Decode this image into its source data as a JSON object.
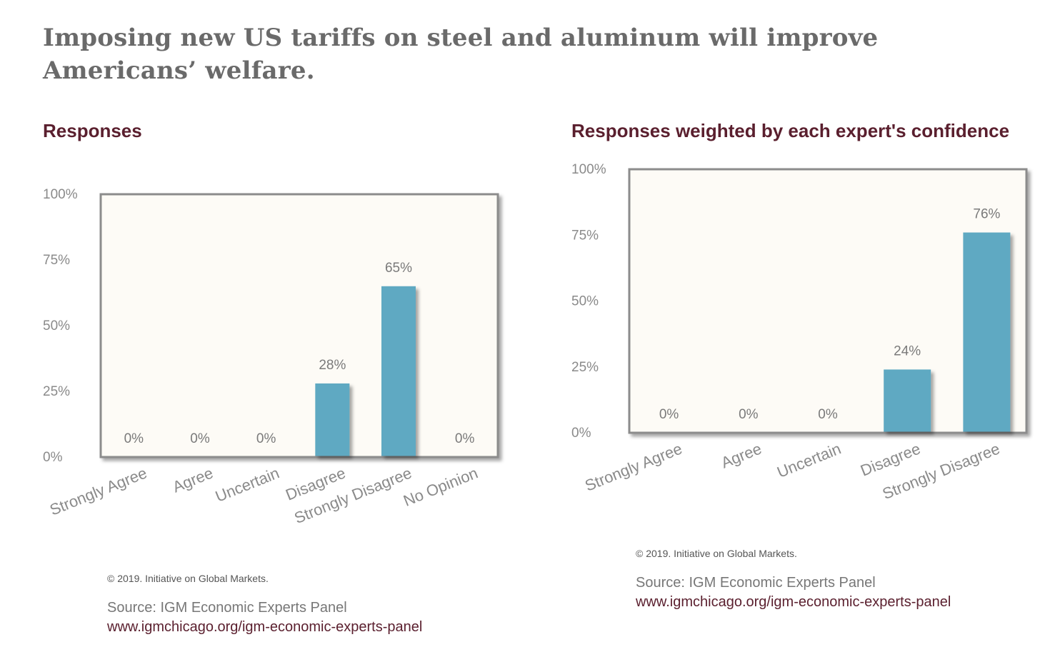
{
  "page": {
    "title": "Imposing new US tariffs on steel and aluminum will improve Americans’ welfare."
  },
  "chart_data": [
    {
      "type": "bar",
      "title": "Responses",
      "categories": [
        "Strongly Agree",
        "Agree",
        "Uncertain",
        "Disagree",
        "Strongly Disagree",
        "No Opinion"
      ],
      "values": [
        0,
        0,
        0,
        28,
        65,
        0
      ],
      "value_labels": [
        "0%",
        "0%",
        "0%",
        "28%",
        "65%",
        "0%"
      ],
      "yticks": [
        "0%",
        "25%",
        "50%",
        "75%",
        "100%"
      ],
      "ylim": [
        0,
        100
      ],
      "xlabel": "",
      "ylabel": "",
      "grid": false,
      "bar_color": "#5fa9c2",
      "copyright": "© 2019. Initiative on Global Markets.",
      "source": "Source: IGM Economic Experts Panel",
      "url": "www.igmchicago.org/igm-economic-experts-panel"
    },
    {
      "type": "bar",
      "title": "Responses weighted by each expert's confidence",
      "categories": [
        "Strongly Agree",
        "Agree",
        "Uncertain",
        "Disagree",
        "Strongly Disagree"
      ],
      "values": [
        0,
        0,
        0,
        24,
        76
      ],
      "value_labels": [
        "0%",
        "0%",
        "0%",
        "24%",
        "76%"
      ],
      "yticks": [
        "0%",
        "25%",
        "50%",
        "75%",
        "100%"
      ],
      "ylim": [
        0,
        100
      ],
      "xlabel": "",
      "ylabel": "",
      "grid": false,
      "bar_color": "#5fa9c2",
      "copyright": "© 2019. Initiative on Global Markets.",
      "source": "Source: IGM Economic Experts Panel",
      "url": "www.igmchicago.org/igm-economic-experts-panel"
    }
  ]
}
